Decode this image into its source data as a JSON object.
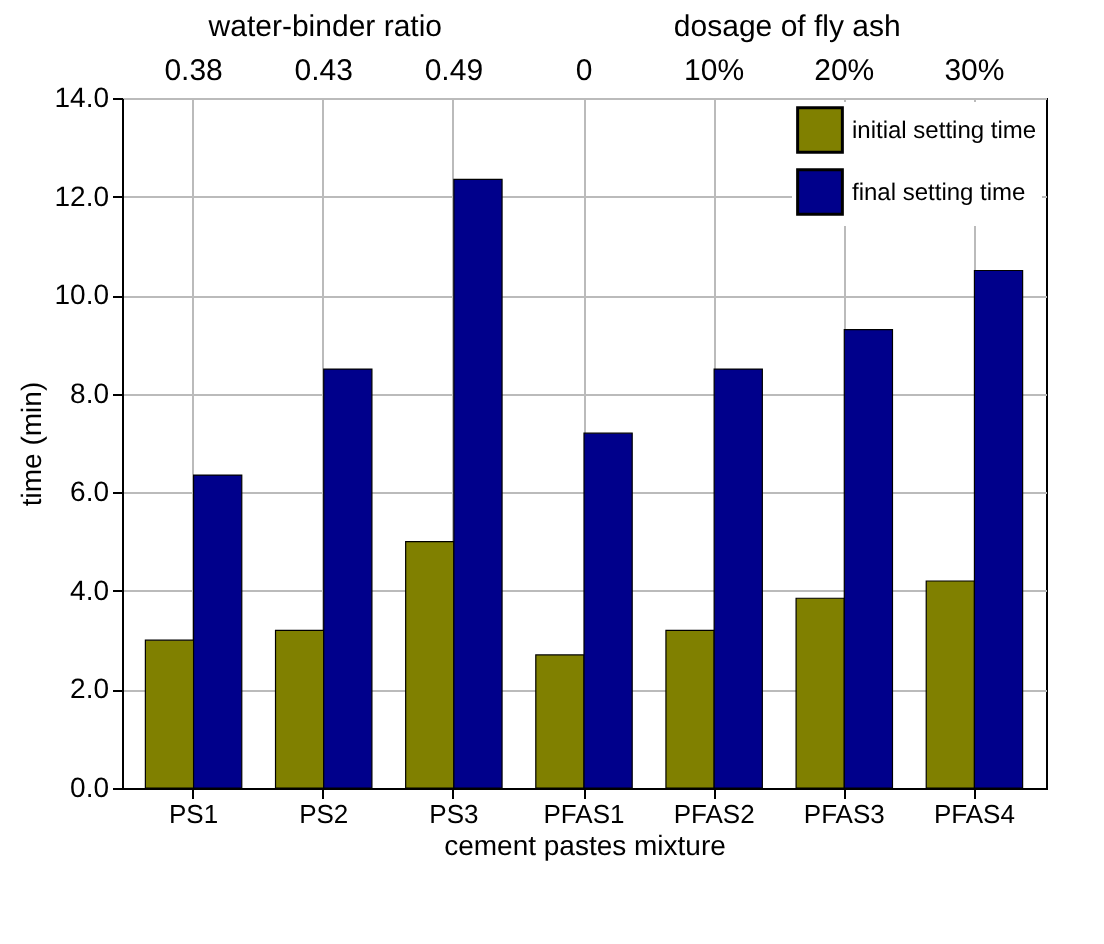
{
  "chart_data": {
    "type": "bar",
    "xlabel": "cement pastes mixture",
    "ylabel": "time (min)",
    "categories": [
      "PS1",
      "PS2",
      "PS3",
      "PFAS1",
      "PFAS2",
      "PFAS3",
      "PFAS4"
    ],
    "series": [
      {
        "name": "initial setting time",
        "color": "#808000",
        "values": [
          3.0,
          3.2,
          5.0,
          2.7,
          3.2,
          3.85,
          4.2
        ]
      },
      {
        "name": "final setting time",
        "color": "#00008b",
        "values": [
          6.35,
          8.5,
          12.35,
          7.2,
          8.5,
          9.3,
          10.5
        ]
      }
    ],
    "ylim": [
      0,
      14
    ],
    "yticks": [
      {
        "value": 0,
        "label": "0.0"
      },
      {
        "value": 2,
        "label": "2.0"
      },
      {
        "value": 4,
        "label": "4.0"
      },
      {
        "value": 6,
        "label": "6.0"
      },
      {
        "value": 8,
        "label": "8.0"
      },
      {
        "value": 10,
        "label": "10.0"
      },
      {
        "value": 12,
        "label": "12.0"
      },
      {
        "value": 14,
        "label": "14.0"
      }
    ],
    "annotations": [
      "water-binder ratio",
      "dosage of fly ash",
      "0.38",
      "0.43",
      "0.49",
      "0",
      "10%",
      "20%",
      "30%"
    ],
    "grid": true,
    "legend": "top right"
  }
}
